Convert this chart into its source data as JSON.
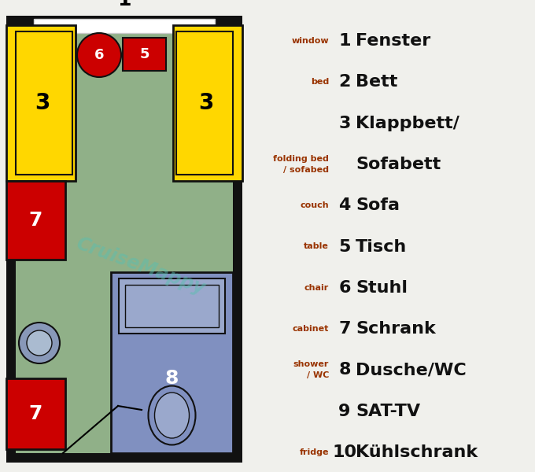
{
  "bg_color": "#f0f0ec",
  "colors": {
    "yellow": "#FFD700",
    "red": "#cc0000",
    "blue": "#8090c0",
    "blue_light": "#9aA8cc",
    "black": "#111111",
    "white": "#ffffff",
    "green_floor": "#90b088",
    "teal_watermark": "#5abfb0"
  },
  "legend_rows": [
    {
      "en": "window",
      "en2": "",
      "num": "1",
      "de": "Fenster",
      "en_color": "#993300",
      "num_show": true
    },
    {
      "en": "bed",
      "en2": "",
      "num": "2",
      "de": "Bett",
      "en_color": "#993300",
      "num_show": true
    },
    {
      "en": "",
      "en2": "",
      "num": "3",
      "de": "Klappbett/",
      "en_color": "#000000",
      "num_show": true
    },
    {
      "en": "folding bed",
      "en2": "/ sofabed",
      "num": "",
      "de": "Sofabett",
      "en_color": "#993300",
      "num_show": false
    },
    {
      "en": "couch",
      "en2": "",
      "num": "4",
      "de": "Sofa",
      "en_color": "#993300",
      "num_show": true
    },
    {
      "en": "table",
      "en2": "",
      "num": "5",
      "de": "Tisch",
      "en_color": "#993300",
      "num_show": true
    },
    {
      "en": "chair",
      "en2": "",
      "num": "6",
      "de": "Stuhl",
      "en_color": "#993300",
      "num_show": true
    },
    {
      "en": "cabinet",
      "en2": "",
      "num": "7",
      "de": "Schrank",
      "en_color": "#993300",
      "num_show": true
    },
    {
      "en": "shower",
      "en2": "/ WC",
      "num": "8",
      "de": "Dusche/WC",
      "en_color": "#993300",
      "num_show": true
    },
    {
      "en": "",
      "en2": "",
      "num": "9",
      "de": "SAT-TV",
      "en_color": "#000000",
      "num_show": true
    },
    {
      "en": "fridge",
      "en2": "",
      "num": "10",
      "de": "Kühlschrank",
      "en_color": "#993300",
      "num_show": true
    }
  ]
}
